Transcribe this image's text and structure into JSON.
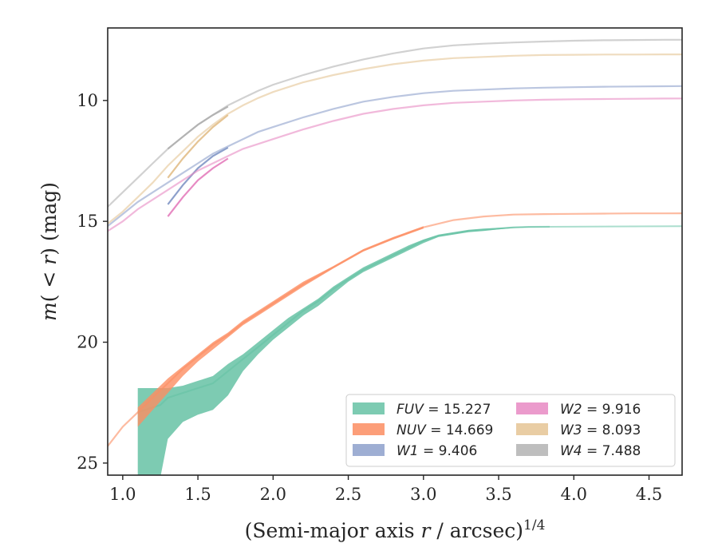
{
  "chart_data": {
    "type": "line",
    "xlabel": "(Semi-major axis r / arcsec)",
    "xlabel_italic_var": "r",
    "xlabel_superscript": "1/4",
    "ylabel": "m(< r) (mag)",
    "xlim": [
      0.9,
      4.72
    ],
    "ylim": [
      25.5,
      7.0
    ],
    "y_inverted": true,
    "xticks": [
      1.0,
      1.5,
      2.0,
      2.5,
      3.0,
      3.5,
      4.0,
      4.5
    ],
    "xtick_labels": [
      "1.0",
      "1.5",
      "2.0",
      "2.5",
      "3.0",
      "3.5",
      "4.0",
      "4.5"
    ],
    "yticks": [
      10,
      15,
      20,
      25
    ],
    "ytick_labels": [
      "10",
      "15",
      "20",
      "25"
    ],
    "grid": false,
    "legend_position": "lower-right",
    "series": [
      {
        "name": "FUV",
        "label_text": "= 15.227",
        "color": "#66c2a5",
        "x": [
          1.1,
          1.25,
          1.3,
          1.4,
          1.5,
          1.6,
          1.7,
          1.8,
          1.9,
          2.0,
          2.1,
          2.2,
          2.3,
          2.4,
          2.5,
          2.6,
          2.7,
          2.8,
          2.9,
          3.0,
          3.1,
          3.2,
          3.3,
          3.4,
          3.5,
          3.6,
          3.7,
          3.84
        ],
        "y": [
          22.9,
          22.6,
          22.3,
          22.1,
          21.9,
          21.7,
          21.2,
          20.7,
          20.2,
          19.7,
          19.2,
          18.7,
          18.3,
          17.8,
          17.4,
          17.0,
          16.7,
          16.4,
          16.1,
          15.8,
          15.6,
          15.5,
          15.4,
          15.35,
          15.3,
          15.25,
          15.23,
          15.227
        ],
        "y_lower": [
          21.9,
          21.9,
          21.9,
          21.8,
          21.6,
          21.4,
          20.9,
          20.5,
          20.0,
          19.5,
          19.0,
          18.6,
          18.2,
          17.7,
          17.3,
          16.9,
          16.6,
          16.3,
          16.0,
          15.75,
          15.55,
          15.45,
          15.35,
          15.3,
          15.27,
          15.24,
          15.22,
          15.21
        ],
        "y_upper": [
          25.6,
          25.6,
          24.0,
          23.3,
          23.0,
          22.8,
          22.2,
          21.2,
          20.5,
          19.9,
          19.4,
          18.9,
          18.5,
          18.0,
          17.5,
          17.1,
          16.8,
          16.5,
          16.2,
          15.9,
          15.65,
          15.55,
          15.45,
          15.4,
          15.33,
          15.28,
          15.25,
          15.24
        ],
        "extension_x": [
          3.84,
          4.72
        ],
        "extension_y": [
          15.227,
          15.2
        ]
      },
      {
        "name": "NUV",
        "label_text": "= 14.669",
        "color": "#fc8d62",
        "x": [
          0.9,
          1.0,
          1.1,
          1.2,
          1.3,
          1.4,
          1.5,
          1.6,
          1.7,
          1.8,
          1.9,
          2.0,
          2.2,
          2.4,
          2.6,
          2.8,
          3.0,
          3.2,
          3.4,
          3.6,
          3.8,
          4.0,
          4.2,
          4.4,
          4.6,
          4.72
        ],
        "y": [
          24.3,
          23.5,
          22.9,
          22.3,
          21.7,
          21.1,
          20.6,
          20.1,
          19.7,
          19.2,
          18.8,
          18.4,
          17.6,
          16.9,
          16.2,
          15.7,
          15.25,
          14.95,
          14.8,
          14.72,
          14.7,
          14.69,
          14.68,
          14.67,
          14.67,
          14.669
        ],
        "band_start_x": 1.1,
        "band_lower": [
          22.7,
          22.1,
          21.5,
          21.0,
          20.5,
          20.0,
          19.6,
          19.1,
          18.7,
          18.3,
          17.5,
          16.85,
          16.15,
          15.65,
          15.2
        ],
        "band_upper": [
          23.5,
          22.8,
          22.1,
          21.4,
          20.8,
          20.3,
          19.8,
          19.3,
          18.9,
          18.5,
          17.7,
          16.95,
          16.25,
          15.75,
          15.3
        ]
      },
      {
        "name": "W1",
        "label_text": "= 9.406",
        "color": "#8da0cb",
        "x": [
          0.9,
          1.0,
          1.1,
          1.2,
          1.3,
          1.4,
          1.5,
          1.6,
          1.7,
          1.8,
          1.9,
          2.0,
          2.2,
          2.4,
          2.6,
          2.8,
          3.0,
          3.2,
          3.4,
          3.6,
          3.8,
          4.0,
          4.2,
          4.4,
          4.6,
          4.72
        ],
        "y": [
          15.2,
          14.7,
          14.2,
          13.8,
          13.4,
          13.0,
          12.6,
          12.2,
          11.9,
          11.6,
          11.3,
          11.1,
          10.7,
          10.35,
          10.05,
          9.85,
          9.7,
          9.6,
          9.55,
          9.5,
          9.47,
          9.45,
          9.43,
          9.42,
          9.41,
          9.406
        ],
        "start_branch_x": [
          1.3,
          1.4,
          1.5,
          1.6,
          1.7
        ],
        "start_branch_y": [
          14.3,
          13.5,
          12.8,
          12.3,
          11.95
        ]
      },
      {
        "name": "W2",
        "label_text": "= 9.916",
        "color": "#e78ac3",
        "x": [
          0.9,
          1.0,
          1.1,
          1.2,
          1.3,
          1.4,
          1.5,
          1.6,
          1.7,
          1.8,
          1.9,
          2.0,
          2.2,
          2.4,
          2.6,
          2.8,
          3.0,
          3.2,
          3.4,
          3.6,
          3.8,
          4.0,
          4.2,
          4.4,
          4.6,
          4.72
        ],
        "y": [
          15.4,
          15.0,
          14.5,
          14.1,
          13.7,
          13.3,
          12.9,
          12.6,
          12.3,
          12.0,
          11.8,
          11.6,
          11.2,
          10.85,
          10.55,
          10.35,
          10.2,
          10.1,
          10.05,
          10.0,
          9.97,
          9.95,
          9.94,
          9.93,
          9.92,
          9.916
        ],
        "start_branch_x": [
          1.3,
          1.4,
          1.5,
          1.6,
          1.7
        ],
        "start_branch_y": [
          14.8,
          14.0,
          13.3,
          12.8,
          12.4
        ]
      },
      {
        "name": "W3",
        "label_text": "= 8.093",
        "color": "#e5c494",
        "x": [
          0.9,
          1.0,
          1.1,
          1.2,
          1.3,
          1.4,
          1.5,
          1.6,
          1.7,
          1.8,
          1.9,
          2.0,
          2.2,
          2.4,
          2.6,
          2.8,
          3.0,
          3.2,
          3.4,
          3.6,
          3.8,
          4.0,
          4.2,
          4.4,
          4.6,
          4.72
        ],
        "y": [
          15.1,
          14.6,
          14.0,
          13.4,
          12.7,
          12.1,
          11.5,
          11.0,
          10.55,
          10.2,
          9.9,
          9.65,
          9.25,
          8.95,
          8.7,
          8.5,
          8.35,
          8.25,
          8.2,
          8.15,
          8.12,
          8.11,
          8.1,
          8.1,
          8.095,
          8.093
        ],
        "start_branch_x": [
          1.3,
          1.4,
          1.5,
          1.6,
          1.7
        ],
        "start_branch_y": [
          13.2,
          12.4,
          11.7,
          11.1,
          10.6
        ]
      },
      {
        "name": "W4",
        "label_text": "= 7.488",
        "color": "#b3b3b3",
        "x": [
          0.9,
          1.0,
          1.1,
          1.2,
          1.3,
          1.4,
          1.5,
          1.6,
          1.7,
          1.8,
          1.9,
          2.0,
          2.2,
          2.4,
          2.6,
          2.8,
          3.0,
          3.2,
          3.4,
          3.6,
          3.8,
          4.0,
          4.2,
          4.4,
          4.6,
          4.72
        ],
        "y": [
          14.4,
          13.8,
          13.2,
          12.6,
          12.0,
          11.5,
          11.0,
          10.6,
          10.2,
          9.9,
          9.6,
          9.35,
          8.95,
          8.6,
          8.3,
          8.05,
          7.85,
          7.72,
          7.65,
          7.6,
          7.56,
          7.53,
          7.51,
          7.5,
          7.49,
          7.488
        ],
        "start_branch_x": [
          1.3,
          1.4,
          1.5,
          1.6,
          1.7
        ],
        "start_branch_y": [
          12.0,
          11.5,
          11.0,
          10.6,
          10.25
        ]
      }
    ]
  }
}
